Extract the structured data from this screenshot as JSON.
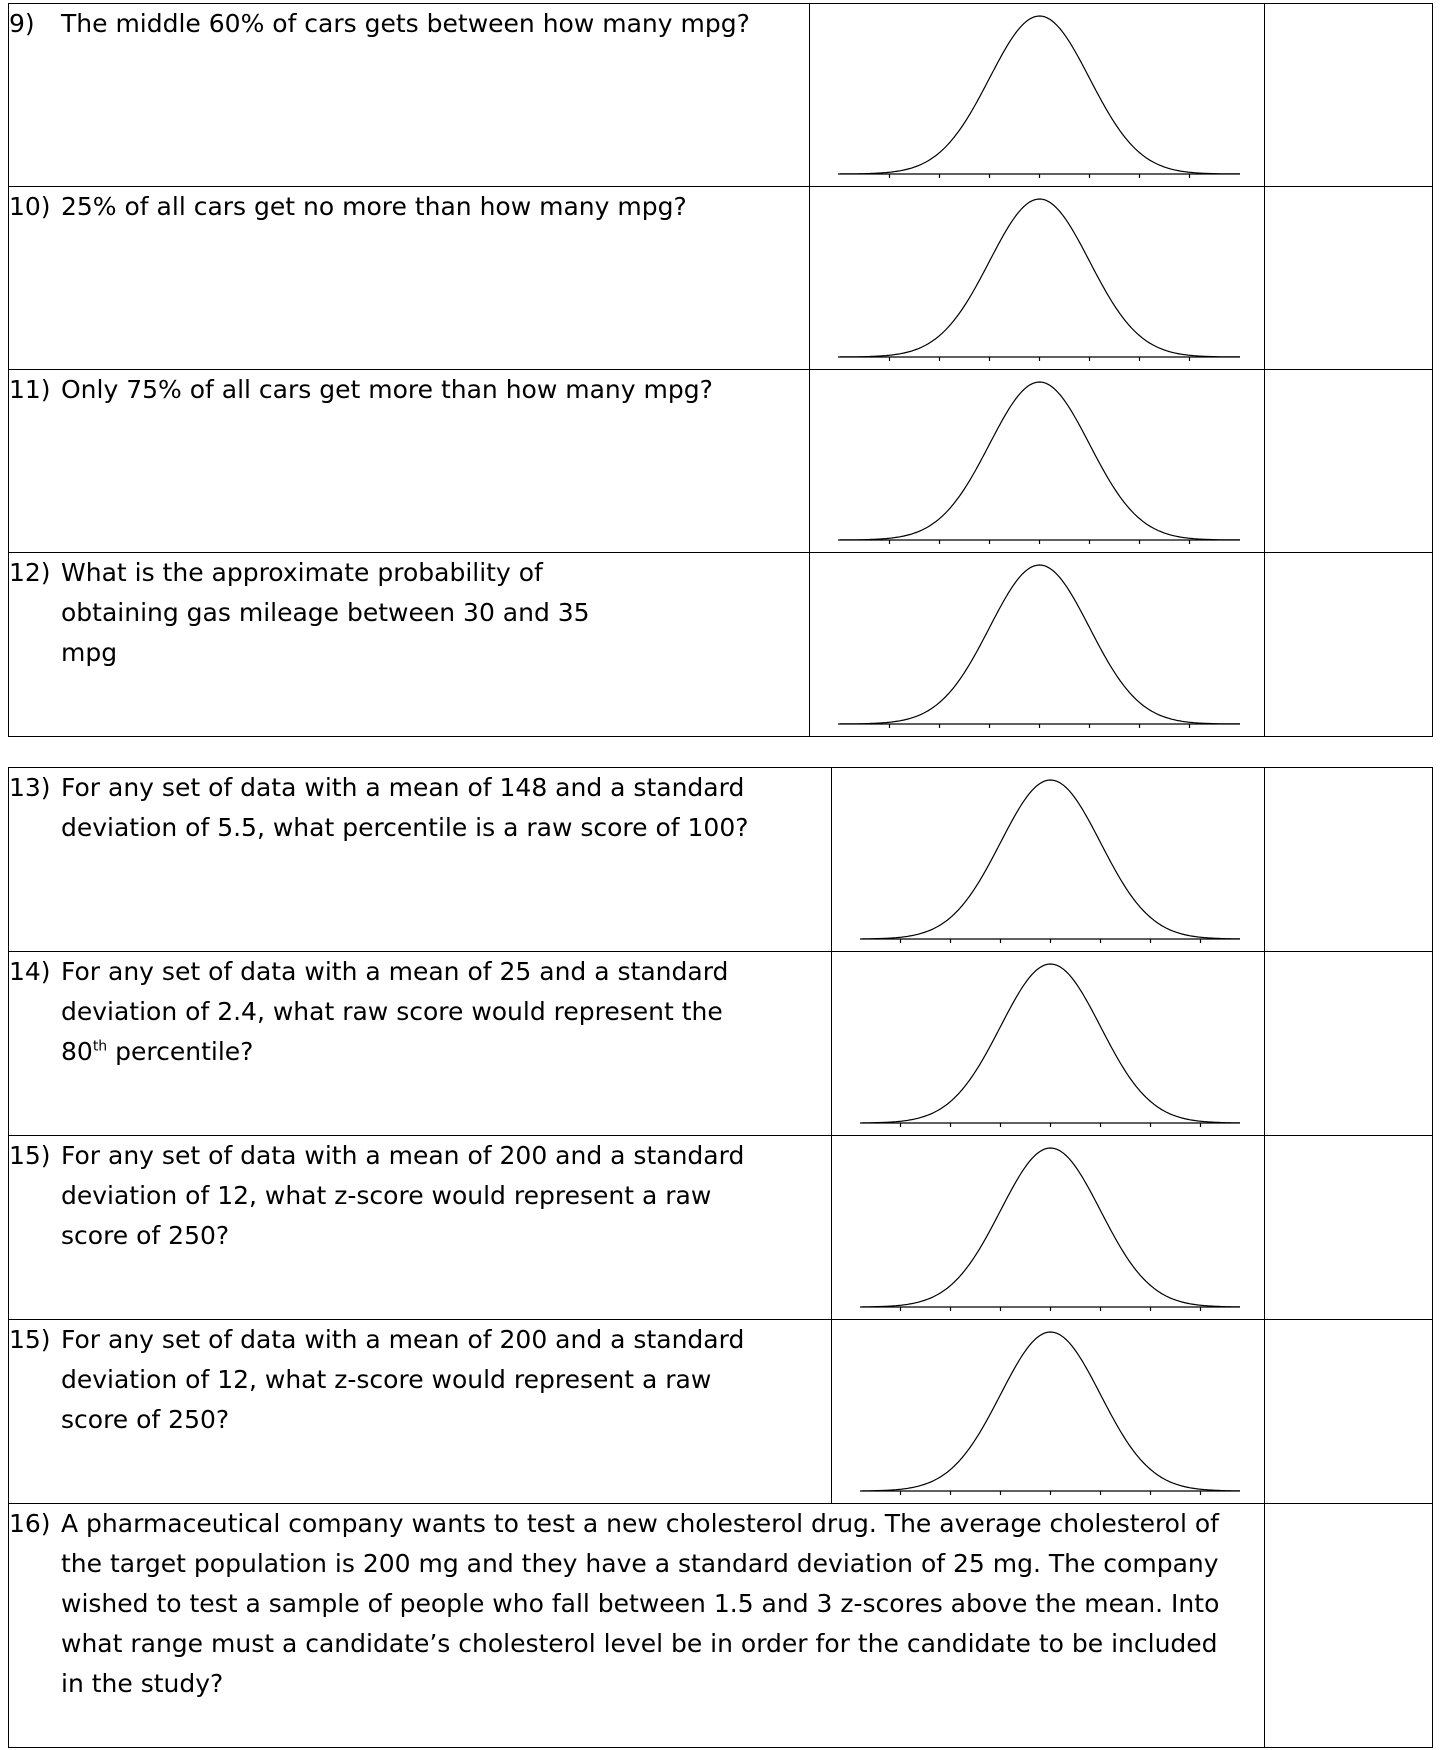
{
  "section1": {
    "questions": [
      {
        "num": "9)",
        "text": "The middle 60% of cars gets between how many mpg?"
      },
      {
        "num": "10)",
        "text": "25% of all cars get no more than how many mpg?"
      },
      {
        "num": "11)",
        "text": "Only 75% of all cars get more than how many mpg?"
      },
      {
        "num": "12)",
        "text": "What is the approximate probability of obtaining gas mileage between 30 and 35 mpg"
      }
    ]
  },
  "section2": {
    "questions": [
      {
        "num": "13)",
        "text": "For any set of data with a mean of 148 and a standard deviation of 5.5, what percentile is a raw score of 100?"
      },
      {
        "num": "14)",
        "text_before": "For any set of data with a mean of 25 and a standard deviation of 2.4, what raw score would represent the 80",
        "sup": "th",
        "text_after": " percentile?"
      },
      {
        "num": "15)",
        "text": "For any set of data with a mean of 200 and a standard deviation of 12, what z-score would represent a raw score of 250?"
      },
      {
        "num": "15)",
        "text": "For any set of data with a mean of 200 and a standard deviation of 12, what z-score would represent a raw score of 250?"
      },
      {
        "num": "16)",
        "text": "A pharmaceutical company wants to test a new cholesterol drug. The average cholesterol of the target population is 200 mg and they have a standard deviation of 25 mg. The company wished to test a sample of people who fall between 1.5 and 3 z-scores above the mean. Into what range must a candidate’s cholesterol level be in order for the candidate to be included in the study?"
      }
    ]
  }
}
